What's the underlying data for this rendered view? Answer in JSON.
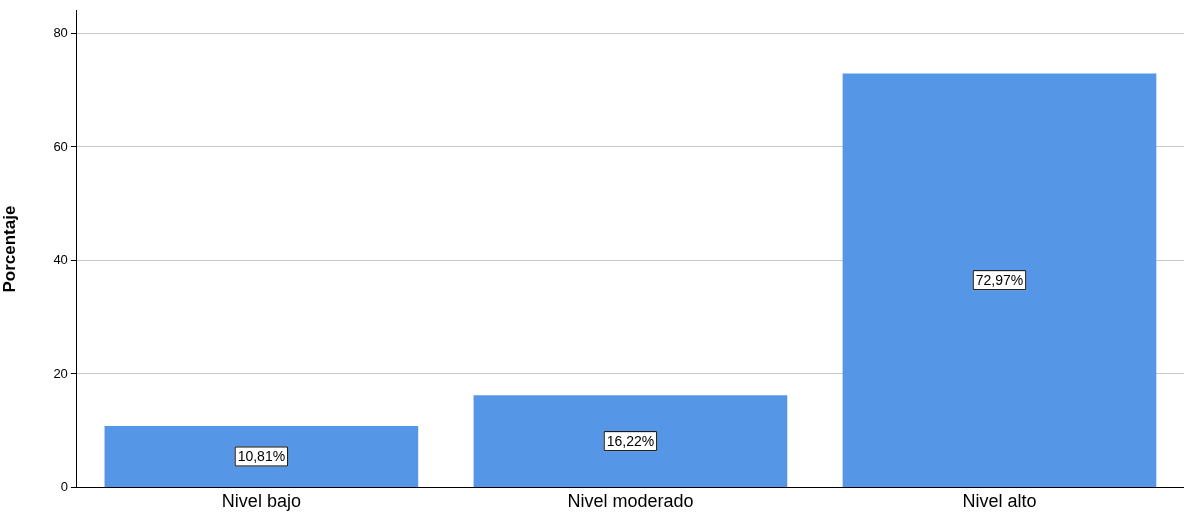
{
  "chart_data": {
    "type": "bar",
    "ylabel": "Porcentaje",
    "categories": [
      "Nivel bajo",
      "Nivel moderado",
      "Nivel alto"
    ],
    "values": [
      10.81,
      16.22,
      72.97
    ],
    "value_labels": [
      "10,81%",
      "16,22%",
      "72,97%"
    ],
    "color": "#5596e6",
    "ylim": [
      0,
      84
    ],
    "yticks": [
      0,
      20,
      40,
      60,
      80
    ],
    "grid": "y",
    "legend": false
  }
}
